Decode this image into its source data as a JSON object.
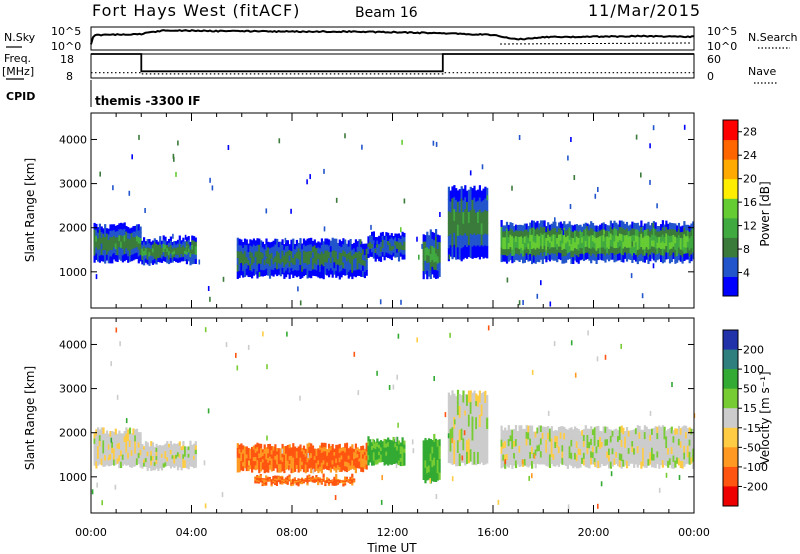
{
  "header": {
    "station": "Fort Hays West (fitACF)",
    "beam": "Beam 16",
    "date": "11/Mar/2015"
  },
  "top_panels": {
    "nsky_label": "N.Sky",
    "nsearch_label": "N.Search",
    "noise_ticks_left": [
      "10^5",
      "10^0"
    ],
    "noise_ticks_right": [
      "10^5",
      "10^0"
    ],
    "freq_label_top": "Freq.",
    "freq_label_bottom": "[MHz]",
    "freq_ticks": [
      "18",
      "8"
    ],
    "nave_label": "Nave",
    "nave_ticks": [
      "60",
      "0"
    ],
    "cpid_label": "CPID",
    "cpid_text": "themis -3300 IF"
  },
  "chart_data": [
    {
      "type": "line",
      "panel": "noise",
      "x": [
        0,
        0.1,
        0.5,
        1,
        2,
        3,
        5,
        8,
        10,
        12,
        14,
        16,
        16.5,
        17,
        18,
        20,
        22,
        24
      ],
      "series": [
        {
          "name": "N.Sky",
          "values": [
            1.2,
            3.2,
            3.3,
            3.3,
            3.5,
            4.3,
            4.1,
            4.0,
            4.0,
            3.9,
            3.6,
            3.3,
            2.7,
            2.3,
            2.8,
            2.9,
            3.0,
            2.9
          ]
        }
      ]
    },
    {
      "type": "line",
      "panel": "frequency",
      "x": [
        0,
        2.0,
        2.0,
        14.0,
        14.0,
        24
      ],
      "series": [
        {
          "name": "Freq.",
          "values": [
            18,
            18,
            10.8,
            10.8,
            18,
            18
          ]
        },
        {
          "name": "Nave",
          "values": [
            10.2,
            10.2,
            9.7,
            9.7,
            10.2,
            10.2
          ]
        }
      ],
      "ylim": [
        8,
        18
      ]
    },
    {
      "type": "heatmap",
      "panel": "power",
      "ylabel": "Slant Range [km]",
      "yticks": [
        "1000",
        "2000",
        "3000",
        "4000"
      ],
      "ylim": [
        180,
        4600
      ],
      "colorbar": {
        "label": "Power [dB]",
        "ticks": [
          "4",
          "8",
          "12",
          "16",
          "20",
          "24",
          "28"
        ],
        "range": [
          0,
          30
        ],
        "colors": [
          "#0000ff",
          "#2255cc",
          "#3a7a3a",
          "#40aa40",
          "#66cc33",
          "#ffee00",
          "#ffaa00",
          "#ff6600",
          "#ff0000"
        ]
      },
      "bands": [
        {
          "t0": 0.1,
          "t1": 2.0,
          "r0": 1250,
          "r1": 2050,
          "level": 10
        },
        {
          "t0": 2.0,
          "t1": 4.2,
          "r0": 1200,
          "r1": 1750,
          "level": 11
        },
        {
          "t0": 5.8,
          "t1": 11.0,
          "r0": 900,
          "r1": 1700,
          "level": 9
        },
        {
          "t0": 11.0,
          "t1": 12.5,
          "r0": 1300,
          "r1": 1850,
          "level": 8
        },
        {
          "t0": 13.2,
          "t1": 13.9,
          "r0": 900,
          "r1": 1900,
          "level": 11
        },
        {
          "t0": 14.2,
          "t1": 15.8,
          "r0": 1300,
          "r1": 2900,
          "level": 10
        },
        {
          "t0": 16.3,
          "t1": 24.0,
          "r0": 1250,
          "r1": 2100,
          "level": 16
        }
      ]
    },
    {
      "type": "heatmap",
      "panel": "velocity",
      "ylabel": "Slant Range [km]",
      "yticks": [
        "1000",
        "2000",
        "3000",
        "4000"
      ],
      "ylim": [
        180,
        4600
      ],
      "xlabel": "Time UT",
      "xticks": [
        "00:00",
        "04:00",
        "08:00",
        "12:00",
        "16:00",
        "20:00",
        "00:00"
      ],
      "xlim": [
        0,
        24
      ],
      "colorbar": {
        "label": "Velocity [m s⁻¹]",
        "ticks": [
          "200",
          "100",
          "50",
          "15",
          "-15",
          "-50",
          "-100",
          "-200"
        ],
        "colors": [
          "#2233aa",
          "#2f7f7f",
          "#33aa33",
          "#77cc33",
          "#cccccc",
          "#ffcc44",
          "#ff9922",
          "#ff5511",
          "#ee0000"
        ]
      },
      "bands": [
        {
          "t0": 0.1,
          "t1": 2.0,
          "r0": 1250,
          "r1": 2050,
          "v": 0
        },
        {
          "t0": 2.0,
          "t1": 4.2,
          "r0": 1200,
          "r1": 1750,
          "v": 0
        },
        {
          "t0": 5.8,
          "t1": 11.0,
          "r0": 1150,
          "r1": 1700,
          "v": -80
        },
        {
          "t0": 6.5,
          "t1": 10.5,
          "r0": 850,
          "r1": 1000,
          "v": -80
        },
        {
          "t0": 11.0,
          "t1": 12.5,
          "r0": 1300,
          "r1": 1850,
          "v": 40
        },
        {
          "t0": 13.2,
          "t1": 13.9,
          "r0": 900,
          "r1": 1900,
          "v": 40
        },
        {
          "t0": 14.2,
          "t1": 15.8,
          "r0": 1300,
          "r1": 2900,
          "v": 0
        },
        {
          "t0": 16.3,
          "t1": 24.0,
          "r0": 1250,
          "r1": 2100,
          "v": 0
        }
      ]
    }
  ]
}
